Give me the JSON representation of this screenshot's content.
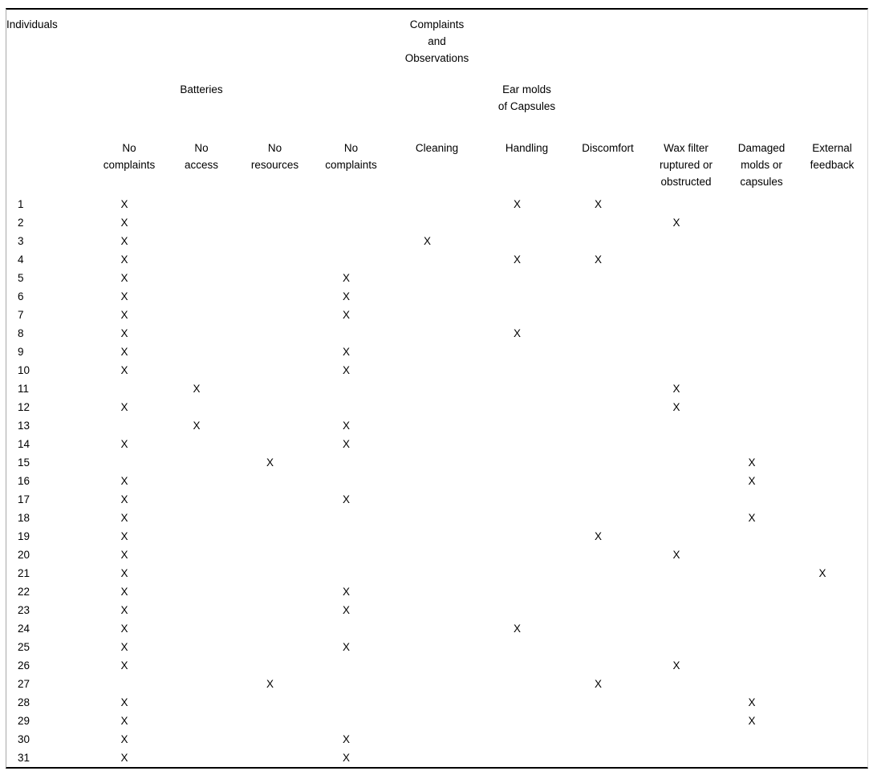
{
  "table": {
    "corner_label": "Individuals",
    "group_headers": {
      "complaints_observations": "Complaints and Observations",
      "batteries": "Batteries",
      "ear_molds": "Ear molds of Capsules"
    },
    "columns": [
      "No complaints",
      "No access",
      "No resources",
      "No complaints",
      "Cleaning",
      "Handling",
      "Discomfort",
      "Wax filter ruptured or obstructed",
      "Damaged molds or capsules",
      "External feedback"
    ],
    "mark": "X",
    "rows": [
      {
        "individual": "1",
        "marks": [
          1,
          6,
          7
        ]
      },
      {
        "individual": "2",
        "marks": [
          1,
          8
        ]
      },
      {
        "individual": "3",
        "marks": [
          1,
          5
        ]
      },
      {
        "individual": "4",
        "marks": [
          1,
          6,
          7
        ]
      },
      {
        "individual": "5",
        "marks": [
          1,
          4
        ]
      },
      {
        "individual": "6",
        "marks": [
          1,
          4
        ]
      },
      {
        "individual": "7",
        "marks": [
          1,
          4
        ]
      },
      {
        "individual": "8",
        "marks": [
          1,
          6
        ]
      },
      {
        "individual": "9",
        "marks": [
          1,
          4
        ]
      },
      {
        "individual": "10",
        "marks": [
          1,
          4
        ]
      },
      {
        "individual": "11",
        "marks": [
          2,
          8
        ]
      },
      {
        "individual": "12",
        "marks": [
          1,
          8
        ]
      },
      {
        "individual": "13",
        "marks": [
          2,
          4
        ]
      },
      {
        "individual": "14",
        "marks": [
          1,
          4
        ]
      },
      {
        "individual": "15",
        "marks": [
          3,
          9
        ]
      },
      {
        "individual": "16",
        "marks": [
          1,
          9
        ]
      },
      {
        "individual": "17",
        "marks": [
          1,
          4
        ]
      },
      {
        "individual": "18",
        "marks": [
          1,
          9
        ]
      },
      {
        "individual": "19",
        "marks": [
          1,
          7
        ]
      },
      {
        "individual": "20",
        "marks": [
          1,
          8
        ]
      },
      {
        "individual": "21",
        "marks": [
          1,
          10
        ]
      },
      {
        "individual": "22",
        "marks": [
          1,
          4
        ]
      },
      {
        "individual": "23",
        "marks": [
          1,
          4
        ]
      },
      {
        "individual": "24",
        "marks": [
          1,
          6
        ]
      },
      {
        "individual": "25",
        "marks": [
          1,
          4
        ]
      },
      {
        "individual": "26",
        "marks": [
          1,
          8
        ]
      },
      {
        "individual": "27",
        "marks": [
          3,
          7
        ]
      },
      {
        "individual": "28",
        "marks": [
          1,
          9
        ]
      },
      {
        "individual": "29",
        "marks": [
          1,
          9
        ]
      },
      {
        "individual": "30",
        "marks": [
          1,
          4
        ]
      },
      {
        "individual": "31",
        "marks": [
          1,
          4
        ]
      }
    ]
  }
}
